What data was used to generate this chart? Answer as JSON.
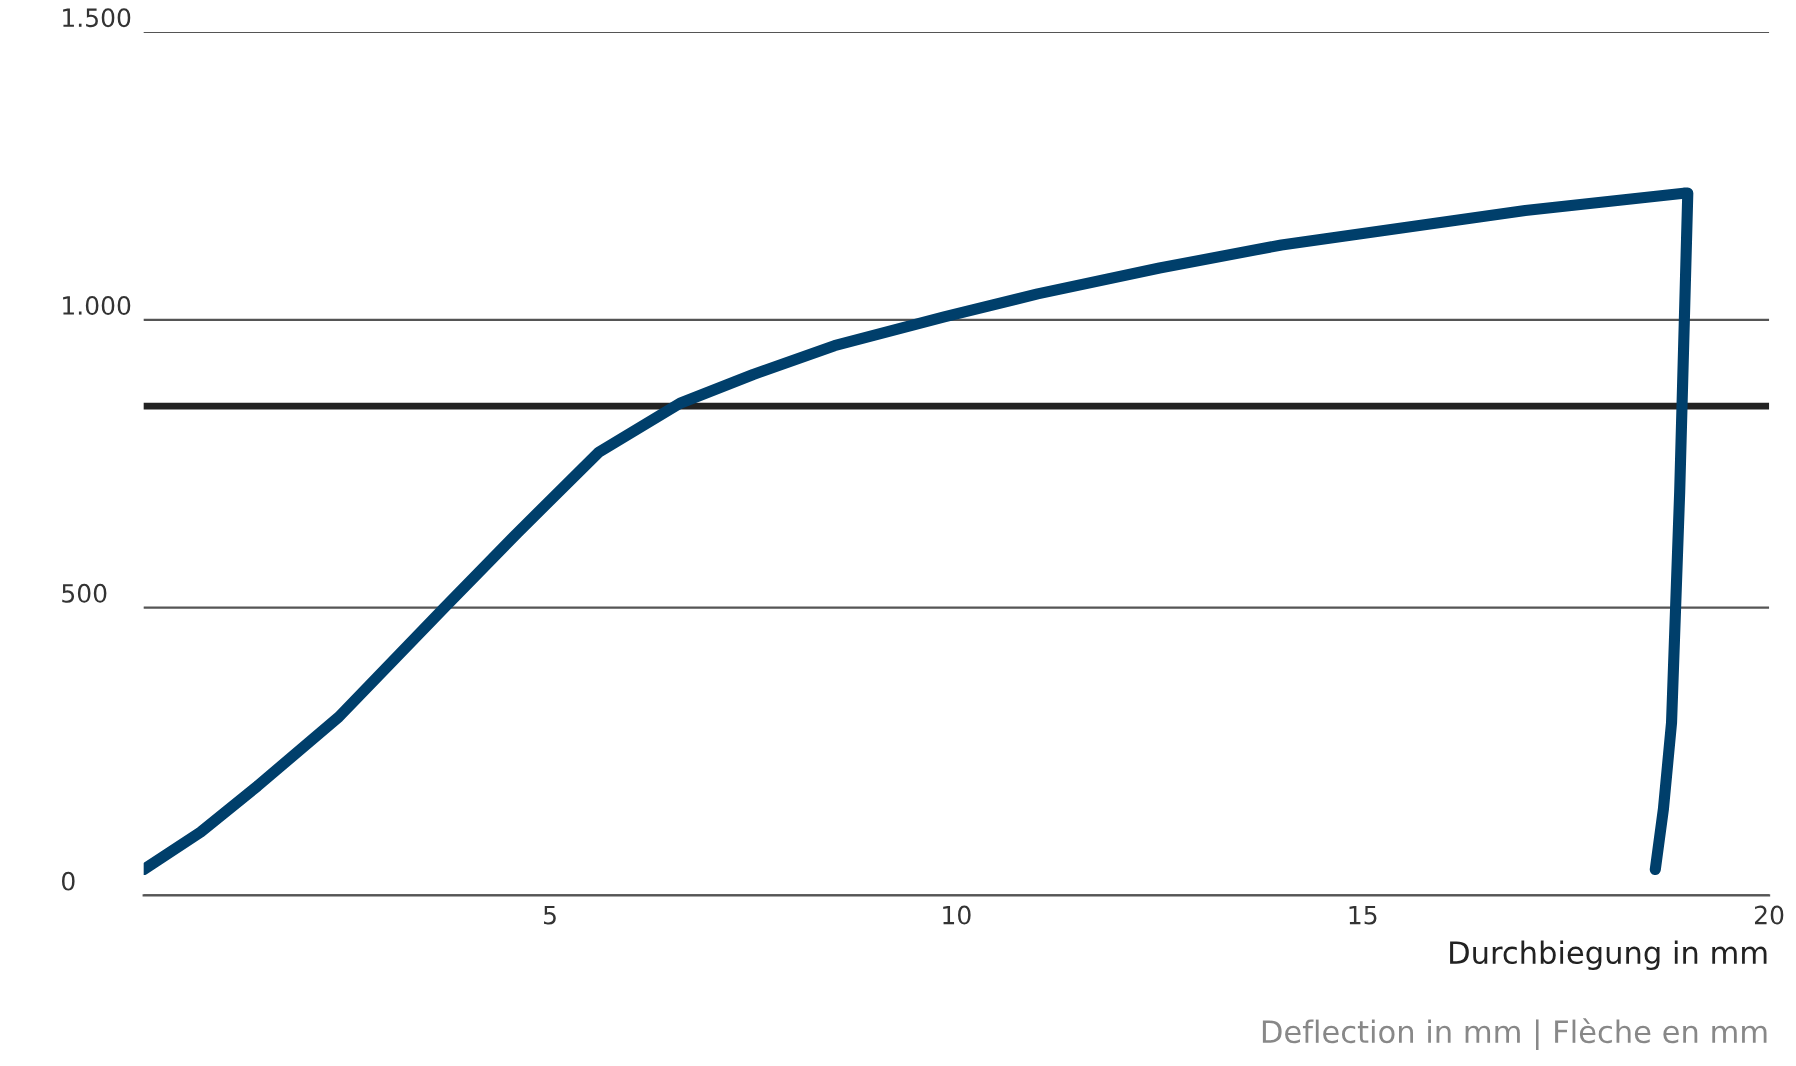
{
  "chart_data": {
    "type": "line",
    "xlabel": "Durchbiegung in mm",
    "annotations": [
      "Deflection in mm | Flèche en mm"
    ],
    "series": [
      {
        "color": "#003f6b",
        "x": [
          0,
          0.7,
          1.4,
          2.4,
          3.7,
          4.6,
          5.6,
          6.6,
          7.5,
          8.5,
          9.85,
          11,
          12.5,
          14,
          15.5,
          17,
          18.95,
          19.0,
          18.9,
          18.8,
          18.7,
          18.6
        ],
        "values": [
          45,
          110,
          190,
          310,
          500,
          630,
          770,
          855,
          905,
          955,
          1005,
          1045,
          1090,
          1130,
          1160,
          1190,
          1220,
          1220,
          700,
          300,
          150,
          45
        ]
      }
    ],
    "xlim": [
      0,
      20
    ],
    "ylim": [
      0,
      1500
    ],
    "xticks": [
      5,
      10,
      15,
      20
    ],
    "yticks": [
      {
        "value": 0,
        "label": "0"
      },
      {
        "value": 500,
        "label": "500"
      },
      {
        "value": 1000,
        "label": "1.000"
      },
      {
        "value": 1500,
        "label": "1.500"
      }
    ],
    "grid": "y",
    "ref_lines": [
      {
        "axis": "y",
        "value": 850,
        "color": "#222222"
      }
    ]
  }
}
